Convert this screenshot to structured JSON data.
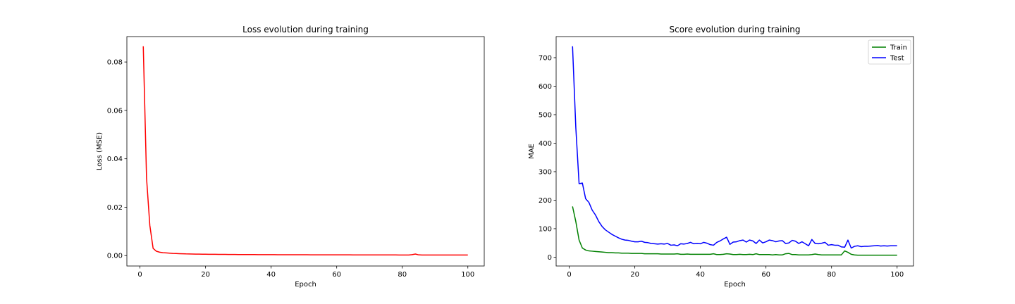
{
  "chart_data": [
    {
      "type": "line",
      "title": "Loss evolution during training",
      "xlabel": "Epoch",
      "ylabel": "Loss (MSE)",
      "xlim": [
        -4,
        105
      ],
      "ylim": [
        -0.0043,
        0.0905
      ],
      "xticks": [
        0,
        20,
        40,
        60,
        80,
        100
      ],
      "yticks": [
        0.0,
        0.02,
        0.04,
        0.06,
        0.08
      ],
      "ytick_labels": [
        "0.00",
        "0.02",
        "0.04",
        "0.06",
        "0.08"
      ],
      "grid": false,
      "legend": "none",
      "series": [
        {
          "color": "#ff0000",
          "x": [
            1,
            2,
            3,
            4,
            5,
            6,
            7,
            8,
            9,
            10,
            11,
            12,
            13,
            14,
            15,
            16,
            17,
            18,
            19,
            20,
            21,
            22,
            23,
            24,
            25,
            26,
            27,
            28,
            29,
            30,
            31,
            32,
            33,
            34,
            35,
            36,
            37,
            38,
            39,
            40,
            41,
            42,
            43,
            44,
            45,
            46,
            47,
            48,
            49,
            50,
            51,
            52,
            53,
            54,
            55,
            56,
            57,
            58,
            59,
            60,
            61,
            62,
            63,
            64,
            65,
            66,
            67,
            68,
            69,
            70,
            71,
            72,
            73,
            74,
            75,
            76,
            77,
            78,
            79,
            80,
            81,
            82,
            83,
            84,
            85,
            86,
            87,
            88,
            89,
            90,
            91,
            92,
            93,
            94,
            95,
            96,
            97,
            98,
            99,
            100
          ],
          "y": [
            0.0865,
            0.032,
            0.0125,
            0.003,
            0.0018,
            0.0014,
            0.0012,
            0.0011,
            0.001,
            0.0009,
            0.00085,
            0.0008,
            0.00075,
            0.0007,
            0.00068,
            0.00065,
            0.00062,
            0.0006,
            0.00058,
            0.00056,
            0.00055,
            0.00053,
            0.00052,
            0.0005,
            0.00049,
            0.00048,
            0.00047,
            0.00046,
            0.00045,
            0.00044,
            0.00044,
            0.00043,
            0.00042,
            0.00042,
            0.00041,
            0.0004,
            0.0004,
            0.00039,
            0.00039,
            0.00038,
            0.00038,
            0.00037,
            0.00037,
            0.00036,
            0.00036,
            0.00035,
            0.00035,
            0.00035,
            0.00034,
            0.00034,
            0.00034,
            0.00033,
            0.00033,
            0.00033,
            0.00032,
            0.00032,
            0.00032,
            0.00031,
            0.00031,
            0.00031,
            0.0003,
            0.0003,
            0.0003,
            0.0003,
            0.00029,
            0.00029,
            0.00029,
            0.00029,
            0.00028,
            0.00028,
            0.00028,
            0.00028,
            0.00028,
            0.00027,
            0.00027,
            0.00027,
            0.00027,
            0.00027,
            0.00026,
            0.00026,
            0.00026,
            0.00026,
            0.0004,
            0.00065,
            0.0003,
            0.00026,
            0.00025,
            0.00025,
            0.00025,
            0.00025,
            0.00025,
            0.00025,
            0.00024,
            0.00024,
            0.00024,
            0.00024,
            0.00024,
            0.00024,
            0.00024,
            0.00024
          ]
        }
      ]
    },
    {
      "type": "line",
      "title": "Score evolution during training",
      "xlabel": "Epoch",
      "ylabel": "MAE",
      "xlim": [
        -4,
        105
      ],
      "ylim": [
        -31,
        774
      ],
      "xticks": [
        0,
        20,
        40,
        60,
        80,
        100
      ],
      "yticks": [
        0,
        100,
        200,
        300,
        400,
        500,
        600,
        700
      ],
      "ytick_labels": [
        "0",
        "100",
        "200",
        "300",
        "400",
        "500",
        "600",
        "700"
      ],
      "grid": false,
      "legend": "top-right",
      "series": [
        {
          "name": "Train",
          "color": "#008000",
          "x": [
            1,
            2,
            3,
            4,
            5,
            6,
            7,
            8,
            9,
            10,
            11,
            12,
            13,
            14,
            15,
            16,
            17,
            18,
            19,
            20,
            21,
            22,
            23,
            24,
            25,
            26,
            27,
            28,
            29,
            30,
            31,
            32,
            33,
            34,
            35,
            36,
            37,
            38,
            39,
            40,
            41,
            42,
            43,
            44,
            45,
            46,
            47,
            48,
            49,
            50,
            51,
            52,
            53,
            54,
            55,
            56,
            57,
            58,
            59,
            60,
            61,
            62,
            63,
            64,
            65,
            66,
            67,
            68,
            69,
            70,
            71,
            72,
            73,
            74,
            75,
            76,
            77,
            78,
            79,
            80,
            81,
            82,
            83,
            84,
            85,
            86,
            87,
            88,
            89,
            90,
            91,
            92,
            93,
            94,
            95,
            96,
            97,
            98,
            99,
            100
          ],
          "y": [
            178,
            125,
            60,
            32,
            25,
            22,
            21,
            20,
            19,
            18,
            17,
            16,
            16,
            15,
            15,
            14,
            14,
            14,
            13,
            13,
            13,
            13,
            12,
            12,
            12,
            12,
            12,
            11,
            11,
            11,
            11,
            11,
            12,
            10,
            10,
            11,
            10,
            10,
            10,
            10,
            10,
            10,
            10,
            12,
            9,
            9,
            10,
            12,
            11,
            9,
            9,
            10,
            9,
            9,
            10,
            9,
            12,
            9,
            9,
            9,
            9,
            8,
            9,
            8,
            8,
            12,
            13,
            9,
            9,
            8,
            8,
            8,
            8,
            9,
            11,
            9,
            8,
            8,
            8,
            8,
            8,
            8,
            8,
            22,
            17,
            10,
            8,
            7,
            7,
            7,
            7,
            7,
            7,
            7,
            7,
            7,
            7,
            7,
            7,
            7
          ]
        },
        {
          "name": "Test",
          "color": "#0000ff",
          "x": [
            1,
            2,
            3,
            4,
            5,
            6,
            7,
            8,
            9,
            10,
            11,
            12,
            13,
            14,
            15,
            16,
            17,
            18,
            19,
            20,
            21,
            22,
            23,
            24,
            25,
            26,
            27,
            28,
            29,
            30,
            31,
            32,
            33,
            34,
            35,
            36,
            37,
            38,
            39,
            40,
            41,
            42,
            43,
            44,
            45,
            46,
            47,
            48,
            49,
            50,
            51,
            52,
            53,
            54,
            55,
            56,
            57,
            58,
            59,
            60,
            61,
            62,
            63,
            64,
            65,
            66,
            67,
            68,
            69,
            70,
            71,
            72,
            73,
            74,
            75,
            76,
            77,
            78,
            79,
            80,
            81,
            82,
            83,
            84,
            85,
            86,
            87,
            88,
            89,
            90,
            91,
            92,
            93,
            94,
            95,
            96,
            97,
            98,
            99,
            100
          ],
          "y": [
            740,
            455,
            258,
            260,
            205,
            192,
            165,
            148,
            125,
            108,
            96,
            88,
            80,
            74,
            68,
            63,
            60,
            59,
            56,
            54,
            54,
            56,
            52,
            51,
            48,
            47,
            46,
            47,
            46,
            48,
            42,
            43,
            40,
            47,
            46,
            48,
            52,
            47,
            48,
            47,
            52,
            49,
            44,
            42,
            52,
            57,
            64,
            70,
            45,
            53,
            54,
            58,
            60,
            53,
            60,
            57,
            48,
            60,
            50,
            54,
            60,
            58,
            54,
            57,
            58,
            48,
            50,
            59,
            56,
            48,
            54,
            47,
            40,
            62,
            48,
            47,
            49,
            52,
            42,
            44,
            42,
            42,
            36,
            35,
            60,
            32,
            38,
            40,
            37,
            38,
            38,
            39,
            40,
            41,
            39,
            40,
            39,
            40,
            40,
            40
          ]
        }
      ]
    }
  ]
}
